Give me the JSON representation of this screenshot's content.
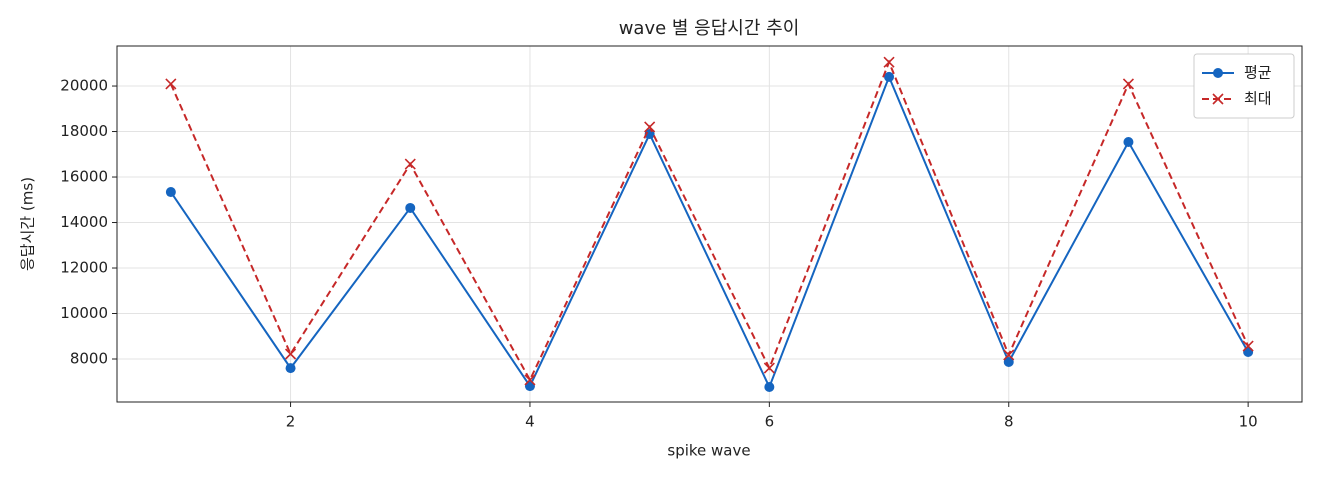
{
  "chart_data": {
    "type": "line",
    "title": "wave 별 응답시간 추이",
    "x_label": "spike wave",
    "y_label": "응답시간 (ms)",
    "x": [
      1,
      2,
      3,
      4,
      5,
      6,
      7,
      8,
      9,
      10
    ],
    "series": [
      {
        "name": "평균",
        "color": "#1565c0",
        "dash": "solid",
        "marker": "circle",
        "values": [
          15340,
          7600,
          14640,
          6810,
          17890,
          6770,
          20400,
          7870,
          17540,
          8310
        ]
      },
      {
        "name": "최대",
        "color": "#c62828",
        "dash": "dashed",
        "marker": "x",
        "values": [
          20090,
          8220,
          16570,
          7080,
          18200,
          7600,
          21050,
          8180,
          20090,
          8570
        ]
      }
    ],
    "xlim": [
      0.55,
      10.45
    ],
    "ylim": [
      6110,
      21760
    ],
    "xticks": [
      2,
      4,
      6,
      8,
      10
    ],
    "yticks": [
      8000,
      10000,
      12000,
      14000,
      16000,
      18000,
      20000
    ],
    "grid": true,
    "legend": "upper-right"
  }
}
